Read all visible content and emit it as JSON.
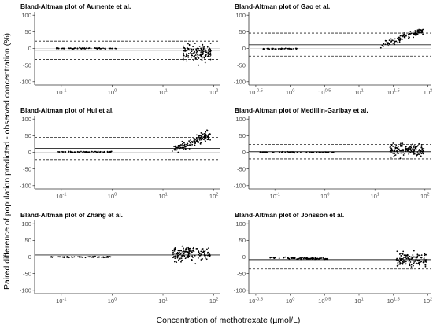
{
  "figure": {
    "ylabel": "Paired difference of population predicted - observed concentration (%)",
    "xlabel": "Concentration of methotrexate (µmol/L)"
  },
  "chart_data": [
    {
      "type": "scatter",
      "title": "Bland-Altman plot of Aumente et al.",
      "x_scale": "log10",
      "xlim": [
        0.03,
        130
      ],
      "ylim": [
        -110,
        110
      ],
      "x_tick_labels": [
        "10^-1",
        "10^0",
        "10^1",
        "10^2"
      ],
      "y_tick_labels": [
        "100",
        "50",
        "0",
        "-50",
        "-100"
      ],
      "mean_difference": -5,
      "limits_of_agreement": [
        -33,
        22
      ],
      "clusters": [
        {
          "x_range": [
            0.08,
            1.2
          ],
          "y_mean": 0,
          "y_spread": 1.5,
          "n": 70
        },
        {
          "x_range": [
            25,
            90
          ],
          "y_mean": -12,
          "y_spread": 22,
          "n": 150
        }
      ]
    },
    {
      "type": "scatter",
      "title": "Bland-Altman plot of Gao et al.",
      "x_scale": "log10",
      "xlim": [
        0.25,
        110
      ],
      "ylim": [
        -110,
        110
      ],
      "x_tick_labels": [
        "10^-0.5",
        "10^0",
        "10^0.5",
        "10^1",
        "10^1.5",
        "10^2"
      ],
      "y_tick_labels": [
        "100",
        "50",
        "0",
        "-50",
        "-100"
      ],
      "mean_difference": 11,
      "limits_of_agreement": [
        -23,
        46
      ],
      "clusters": [
        {
          "x_range": [
            0.4,
            1.3
          ],
          "y_mean": -1,
          "y_spread": 1.5,
          "n": 40
        },
        {
          "x_range": [
            20,
            85
          ],
          "y_mean": 30,
          "y_spread": 10,
          "n": 120,
          "trend": "increasing"
        }
      ]
    },
    {
      "type": "scatter",
      "title": "Bland-Altman plot of Hui et al.",
      "x_scale": "log10",
      "xlim": [
        0.03,
        130
      ],
      "ylim": [
        -110,
        110
      ],
      "x_tick_labels": [
        "10^-1",
        "10^0",
        "10^1",
        "10^2"
      ],
      "y_tick_labels": [
        "100",
        "50",
        "0",
        "-50",
        "-100"
      ],
      "mean_difference": 12,
      "limits_of_agreement": [
        -22,
        45
      ],
      "clusters": [
        {
          "x_range": [
            0.08,
            1.0
          ],
          "y_mean": 1,
          "y_spread": 1.5,
          "n": 70
        },
        {
          "x_range": [
            15,
            85
          ],
          "y_mean": 30,
          "y_spread": 12,
          "n": 150,
          "trend": "increasing"
        }
      ]
    },
    {
      "type": "scatter",
      "title": "Bland-Altman plot of Medillin-Garibay et al.",
      "x_scale": "log10",
      "xlim": [
        0.03,
        130
      ],
      "ylim": [
        -110,
        110
      ],
      "x_tick_labels": [
        "10^-1",
        "10^0",
        "10^1",
        "10^2"
      ],
      "y_tick_labels": [
        "100",
        "50",
        "0",
        "-50",
        "-100"
      ],
      "mean_difference": 2,
      "limits_of_agreement": [
        -20,
        24
      ],
      "clusters": [
        {
          "x_range": [
            0.05,
            1.5
          ],
          "y_mean": 0,
          "y_spread": 1.5,
          "n": 70
        },
        {
          "x_range": [
            20,
            95
          ],
          "y_mean": 8,
          "y_spread": 18,
          "n": 150
        }
      ]
    },
    {
      "type": "scatter",
      "title": "Bland-Altman plot of Zhang et al.",
      "x_scale": "log10",
      "xlim": [
        0.03,
        130
      ],
      "ylim": [
        -110,
        110
      ],
      "x_tick_labels": [
        "10^-1",
        "10^0",
        "10^1",
        "10^2"
      ],
      "y_tick_labels": [
        "100",
        "50",
        "0",
        "-50",
        "-100"
      ],
      "mean_difference": 6,
      "limits_of_agreement": [
        -21,
        33
      ],
      "clusters": [
        {
          "x_range": [
            0.06,
            1.0
          ],
          "y_mean": 0,
          "y_spread": 1.5,
          "n": 70
        },
        {
          "x_range": [
            15,
            85
          ],
          "y_mean": 12,
          "y_spread": 18,
          "n": 150
        }
      ]
    },
    {
      "type": "scatter",
      "title": "Bland-Altman plot of Jonsson et al.",
      "x_scale": "log10",
      "xlim": [
        0.25,
        110
      ],
      "ylim": [
        -110,
        110
      ],
      "x_tick_labels": [
        "10^-0.5",
        "10^0",
        "10^0.5",
        "10^1",
        "10^1.5",
        "10^2"
      ],
      "y_tick_labels": [
        "100",
        "50",
        "0",
        "-50",
        "-100"
      ],
      "mean_difference": -8,
      "limits_of_agreement": [
        -36,
        21
      ],
      "clusters": [
        {
          "x_range": [
            0.5,
            3.5
          ],
          "y_mean": -4,
          "y_spread": 2,
          "n": 90,
          "trend": "decreasing"
        },
        {
          "x_range": [
            35,
            95
          ],
          "y_mean": -8,
          "y_spread": 20,
          "n": 130
        }
      ]
    }
  ]
}
